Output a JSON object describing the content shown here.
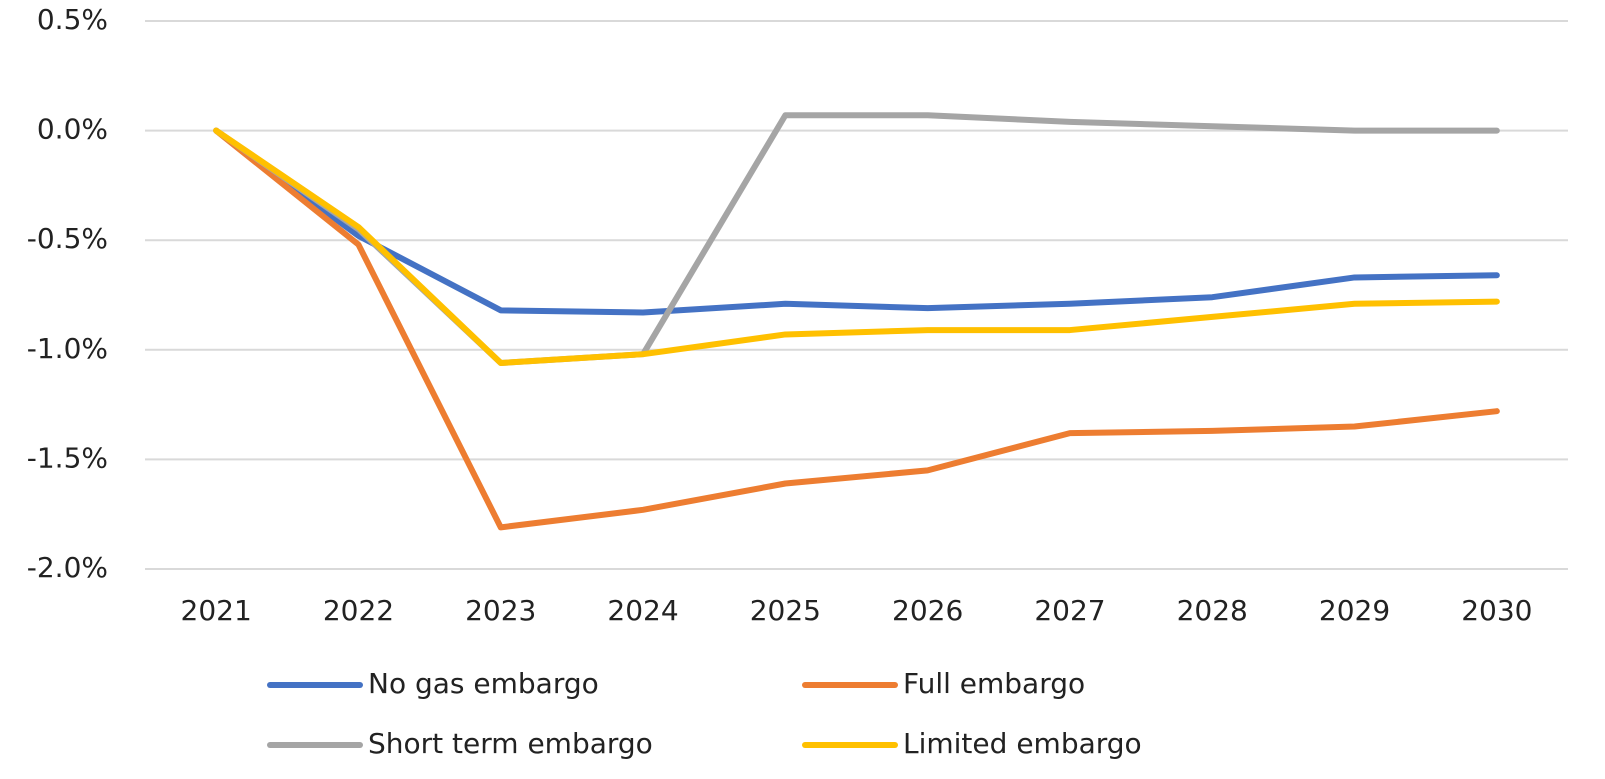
{
  "chart_data": {
    "type": "line",
    "categories": [
      "2021",
      "2022",
      "2023",
      "2024",
      "2025",
      "2026",
      "2027",
      "2028",
      "2029",
      "2030"
    ],
    "series": [
      {
        "name": "No gas embargo",
        "color": "#4472c4",
        "values": [
          0,
          -0.48,
          -0.82,
          -0.83,
          -0.79,
          -0.81,
          -0.79,
          -0.76,
          -0.67,
          -0.66
        ]
      },
      {
        "name": "Full embargo",
        "color": "#ed7d31",
        "values": [
          0,
          -0.52,
          -1.81,
          -1.73,
          -1.61,
          -1.55,
          -1.38,
          -1.37,
          -1.35,
          -1.28
        ]
      },
      {
        "name": "Short term embargo",
        "color": "#a5a5a5",
        "values": [
          0,
          -0.45,
          -1.06,
          -1.02,
          0.07,
          0.07,
          0.04,
          0.02,
          0.0,
          0.0
        ]
      },
      {
        "name": "Limited embargo",
        "color": "#ffc000",
        "values": [
          0,
          -0.44,
          -1.06,
          -1.02,
          -0.93,
          -0.91,
          -0.91,
          -0.85,
          -0.79,
          -0.78
        ]
      }
    ],
    "ylim": [
      -2.0,
      0.5
    ],
    "yticks": [
      {
        "value": 0.5,
        "label": "0.5%"
      },
      {
        "value": 0.0,
        "label": "0.0%"
      },
      {
        "value": -0.5,
        "label": "-0.5%"
      },
      {
        "value": -1.0,
        "label": "-1.0%"
      },
      {
        "value": -1.5,
        "label": "-1.5%"
      },
      {
        "value": -2.0,
        "label": "-2.0%"
      }
    ],
    "grid": true
  }
}
